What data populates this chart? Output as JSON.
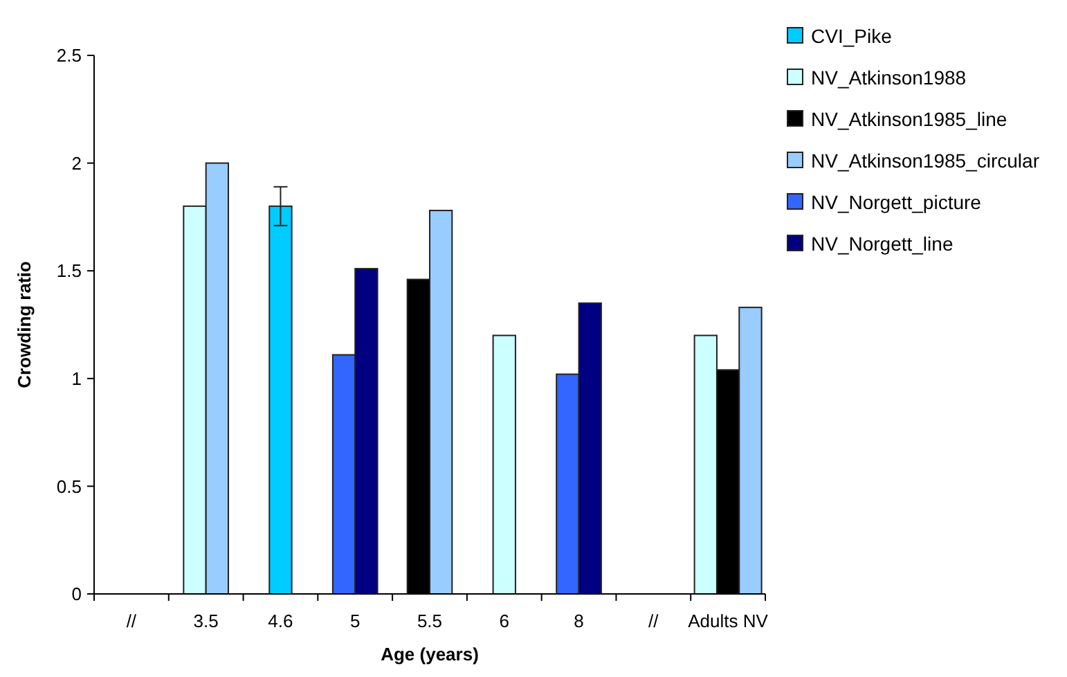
{
  "chart_data": {
    "type": "bar",
    "xlabel": "Age (years)",
    "ylabel": "Crowding ratio",
    "categories": [
      "//",
      "3.5",
      "4.6",
      "5",
      "5.5",
      "6",
      "8",
      "//",
      "Adults NV"
    ],
    "ylim": [
      0,
      2.5
    ],
    "yticks": [
      0,
      0.5,
      1,
      1.5,
      2,
      2.5
    ],
    "grid": false,
    "legend": "top right",
    "series": [
      {
        "name": "CVI_Pike",
        "color": "#00ccff",
        "values": [
          null,
          null,
          1.8,
          null,
          null,
          null,
          null,
          null,
          null
        ],
        "errors": [
          null,
          null,
          0.09,
          null,
          null,
          null,
          null,
          null,
          null
        ]
      },
      {
        "name": "NV_Atkinson1988",
        "color": "#ccffff",
        "values": [
          null,
          1.8,
          null,
          null,
          null,
          1.2,
          null,
          null,
          1.2
        ]
      },
      {
        "name": "NV_Atkinson1985_line",
        "color": "#000000",
        "values": [
          null,
          null,
          null,
          null,
          1.46,
          null,
          null,
          null,
          1.04
        ]
      },
      {
        "name": "NV_Atkinson1985_circular",
        "color": "#99ccff",
        "values": [
          null,
          2.0,
          null,
          null,
          1.78,
          null,
          null,
          null,
          1.33
        ]
      },
      {
        "name": "NV_Norgett_picture",
        "color": "#3366ff",
        "values": [
          null,
          null,
          null,
          1.11,
          null,
          null,
          1.02,
          null,
          null
        ]
      },
      {
        "name": "NV_Norgett_line",
        "color": "#000080",
        "values": [
          null,
          null,
          null,
          1.51,
          null,
          null,
          1.35,
          null,
          null
        ]
      }
    ]
  }
}
